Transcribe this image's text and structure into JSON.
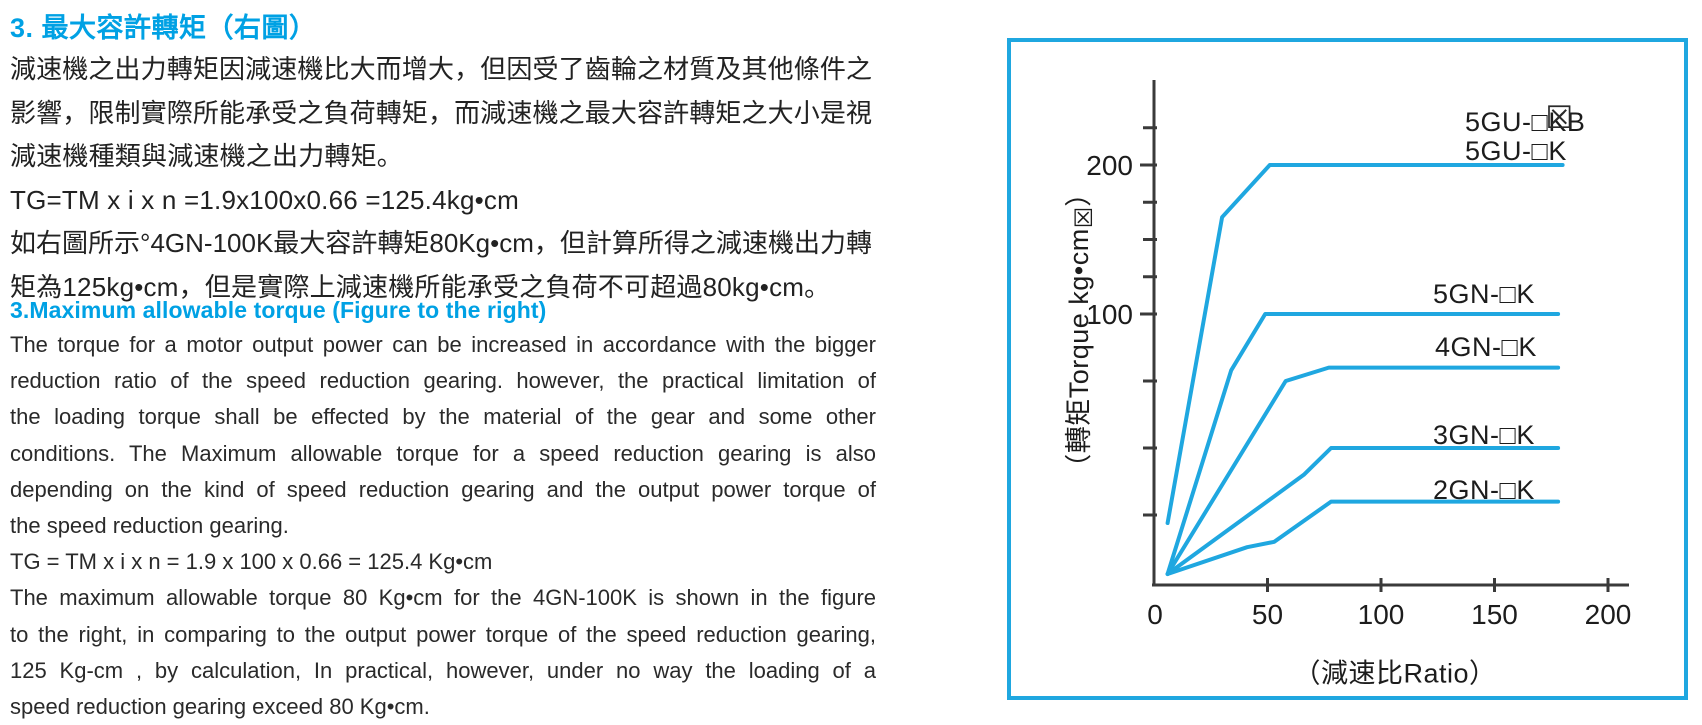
{
  "colors": {
    "heading_blue": "#00a1e4",
    "chart_blue": "#1fa7e0",
    "body_text": "#2a2a2a",
    "axis_gray": "#3a3a3a"
  },
  "left_column": {
    "zh_heading": "3. 最大容許轉矩（右圖）",
    "zh_lines": [
      {
        "text": "減速機之出力轉矩因減速機比大而增大，但因受了齒輪之材質及其他條件之",
        "justify": true
      },
      {
        "text": "影響，限制實際所能承受之負荷轉矩，而減速機之最大容許轉矩之大小是視",
        "justify": true
      },
      {
        "text": "減速機種類與減速機之出力轉矩。",
        "justify": false
      },
      {
        "text": "TG=TM x i x n =1.9x100x0.66 =125.4kg•cm",
        "justify": false
      },
      {
        "text": "如右圖所示°4GN-100K最大容許轉矩80Kg•cm，但計算所得之減速機出力轉",
        "justify": true
      },
      {
        "text": "矩為125kg•cm，但是實際上減速機所能承受之負荷不可超過80kg•cm。",
        "justify": false
      }
    ],
    "en_heading": "3.Maximum allowable torque (Figure to the right)",
    "en_lines": [
      {
        "text": "The torque for a motor output power can be increased in accordance with the bigger",
        "justify": true
      },
      {
        "text": "reduction ratio of the speed reduction gearing. however, the practical limitation of",
        "justify": true
      },
      {
        "text": "the loading torque shall be effected by the material of the gear and some other",
        "justify": true
      },
      {
        "text": "conditions. The Maximum allowable torque for a speed reduction gearing is also",
        "justify": true
      },
      {
        "text": "depending on the kind of speed reduction gearing and the output power torque of",
        "justify": true
      },
      {
        "text": "the speed reduction gearing.",
        "justify": false
      },
      {
        "text": "TG = TM x i x n = 1.9 x 100 x 0.66 = 125.4 Kg•cm",
        "justify": false
      },
      {
        "text": "The maximum allowable torque 80 Kg•cm for the 4GN-100K is shown in the figure",
        "justify": true
      },
      {
        "text": "to the right, in comparing to the output power torque of the speed reduction gearing,",
        "justify": true
      },
      {
        "text": "125 Kg-cm , by calculation, In practical, however, under no way the loading of a",
        "justify": true
      },
      {
        "text": "speed reduction gearing exceed 80 Kg•cm.",
        "justify": false
      }
    ]
  },
  "chart_data": {
    "type": "line",
    "title": "",
    "xlabel": "（減速比Ratio）",
    "ylabel_pre": "（轉矩Torque kg•cm",
    "ylabel_artifact": "☒",
    "ylabel_post": "）",
    "grid": false,
    "legend_position": "inline-labels-right",
    "line_color": "#1fa7e0",
    "x_axis": {
      "min": 0,
      "max": 215,
      "tick_values": [
        50,
        100,
        150,
        200
      ],
      "tick_labels": [
        "50",
        "100",
        "150",
        "200"
      ],
      "zero_label": "0"
    },
    "y_axis": {
      "min": 0,
      "max": 250,
      "labeled_ticks": [
        {
          "value": 100,
          "label": "100"
        },
        {
          "value": 200,
          "label": "200"
        }
      ],
      "minor_ticks": [
        25,
        50,
        75,
        125,
        150,
        175,
        225
      ]
    },
    "series": [
      {
        "name": "5GU-□KB / 5GU-□K",
        "points": [
          [
            6,
            22
          ],
          [
            30,
            165
          ],
          [
            51,
            200
          ],
          [
            180,
            200
          ]
        ]
      },
      {
        "name": "5GN-□K",
        "points": [
          [
            6,
            3
          ],
          [
            34,
            79
          ],
          [
            49,
            100
          ],
          [
            178,
            100
          ]
        ]
      },
      {
        "name": "4GN-□K",
        "points": [
          [
            6,
            3
          ],
          [
            58,
            75
          ],
          [
            77,
            80
          ],
          [
            178,
            80
          ]
        ]
      },
      {
        "name": "3GN-□K",
        "points": [
          [
            6,
            3
          ],
          [
            66,
            40
          ],
          [
            78,
            50
          ],
          [
            178,
            50
          ]
        ]
      },
      {
        "name": "2GN-□K",
        "points": [
          [
            6,
            3
          ],
          [
            41,
            13
          ],
          [
            53,
            15
          ],
          [
            78,
            30
          ],
          [
            178,
            30
          ]
        ]
      }
    ],
    "labels": [
      {
        "pre": "5GU-□",
        "boxed": "K",
        "post": "B",
        "x": 137,
        "y": 228
      },
      {
        "pre": "5GU-□K",
        "boxed": "",
        "post": "",
        "x": 137,
        "y": 209
      },
      {
        "pre": "5GN-□K",
        "boxed": "",
        "post": "",
        "x": 123,
        "y": 113
      },
      {
        "pre": "4GN-□K",
        "boxed": "",
        "post": "",
        "x": 124,
        "y": 87.5
      },
      {
        "pre": "3GN-□K",
        "boxed": "",
        "post": "",
        "x": 123,
        "y": 54.5
      },
      {
        "pre": "2GN-□K",
        "boxed": "",
        "post": "",
        "x": 123,
        "y": 34
      }
    ],
    "artifact_glyph": "☒"
  }
}
